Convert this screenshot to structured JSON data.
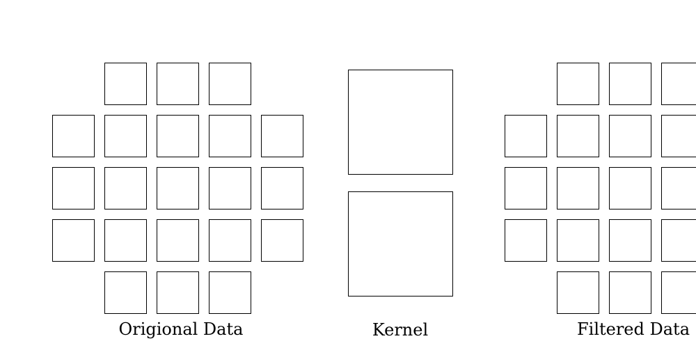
{
  "labels": {
    "original": "Origional Data",
    "kernel": "Kernel",
    "filtered": "Filtered Data"
  },
  "grids": {
    "original": {
      "rows": [
        [
          false,
          true,
          true,
          true,
          false
        ],
        [
          true,
          true,
          true,
          true,
          true
        ],
        [
          true,
          true,
          true,
          true,
          true
        ],
        [
          true,
          true,
          true,
          true,
          true
        ],
        [
          false,
          true,
          true,
          true,
          false
        ]
      ]
    },
    "filtered": {
      "rows": [
        [
          false,
          true,
          true,
          true,
          false
        ],
        [
          true,
          true,
          true,
          true,
          true
        ],
        [
          true,
          true,
          true,
          true,
          true
        ],
        [
          true,
          true,
          true,
          true,
          true
        ],
        [
          false,
          true,
          true,
          true,
          false
        ]
      ]
    }
  },
  "kernel": {
    "cells": 2
  },
  "colors": {
    "stroke": "#000000",
    "fill": "#ffffff"
  }
}
